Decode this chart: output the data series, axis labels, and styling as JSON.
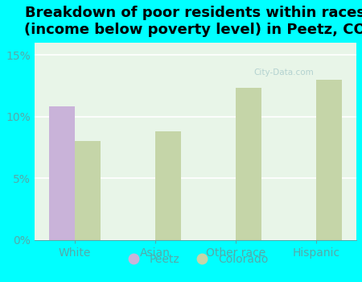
{
  "title": "Breakdown of poor residents within races\n(income below poverty level) in Peetz, CO",
  "categories": [
    "White",
    "Asian",
    "Other race",
    "Hispanic"
  ],
  "peetz_values": [
    10.8,
    0,
    0,
    0
  ],
  "colorado_values": [
    8.0,
    8.8,
    12.3,
    13.0
  ],
  "peetz_color": "#c9b3d9",
  "colorado_color": "#c5d5a8",
  "plot_bg_top": "#e8f5e8",
  "plot_bg_bottom": "#f0faf0",
  "outer_background": "#00ffff",
  "ylim": [
    0,
    16
  ],
  "yticks": [
    0,
    5,
    10,
    15
  ],
  "ytick_labels": [
    "0%",
    "5%",
    "10%",
    "15%"
  ],
  "bar_width": 0.32,
  "legend_labels": [
    "Peetz",
    "Colorado"
  ],
  "title_fontsize": 13,
  "axis_fontsize": 10,
  "legend_fontsize": 10,
  "tick_color": "#55aaaa",
  "grid_color": "#ffffff"
}
